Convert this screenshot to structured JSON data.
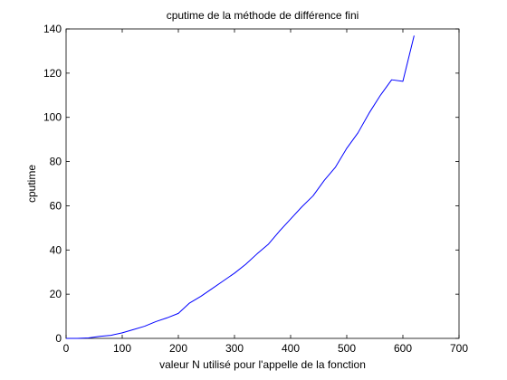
{
  "chart_data": {
    "type": "line",
    "title": "cputime de la méthode de différence fini",
    "xlabel": "valeur N utilisé pour l'appelle de la fonction",
    "ylabel": "cputime",
    "xlim": [
      0,
      700
    ],
    "ylim": [
      0,
      140
    ],
    "xticks": [
      "0",
      "100",
      "200",
      "300",
      "400",
      "500",
      "600",
      "700"
    ],
    "yticks": [
      "0",
      "20",
      "40",
      "60",
      "80",
      "100",
      "120",
      "140"
    ],
    "grid": false,
    "line_color": "#0000ff",
    "series": [
      {
        "x": [
          0,
          20,
          40,
          60,
          80,
          100,
          120,
          140,
          160,
          180,
          200,
          220,
          240,
          260,
          280,
          300,
          320,
          340,
          360,
          380,
          400,
          420,
          440,
          460,
          480,
          500,
          520,
          540,
          560,
          580,
          600,
          620
        ],
        "y": [
          0,
          0,
          0.2,
          0.9,
          1.4,
          2.5,
          4.0,
          5.5,
          7.6,
          9.3,
          11.3,
          16.0,
          19.0,
          22.5,
          26.0,
          29.5,
          33.5,
          38.2,
          42.5,
          48.5,
          54.0,
          59.5,
          64.5,
          71.5,
          77.5,
          86.0,
          93.0,
          102.0,
          110.0,
          117.0,
          116.3,
          137.0
        ]
      }
    ]
  }
}
